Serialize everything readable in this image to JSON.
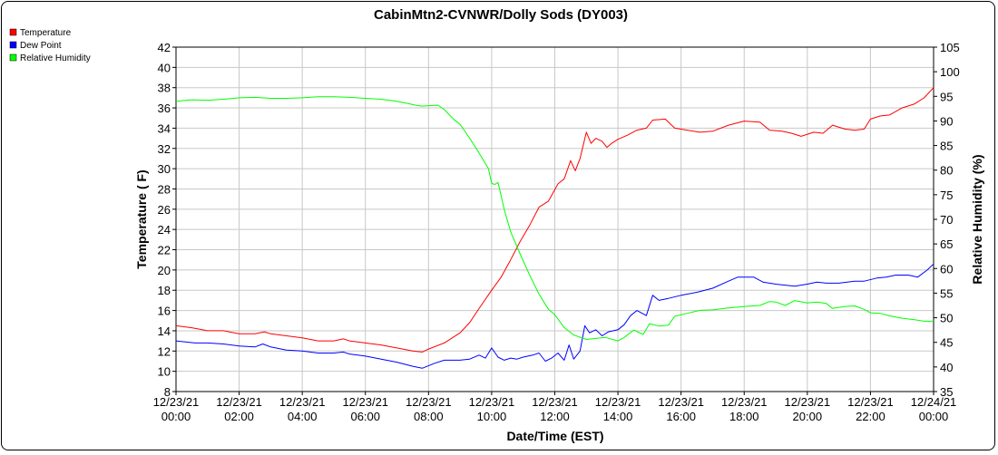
{
  "chart_data": {
    "type": "line",
    "title": "CabinMtn2-CVNWR/Dolly Sods (DY003)",
    "xlabel": "Date/Time (EST)",
    "ylabel_left": "Temperature ( F)",
    "ylabel_right": "Relative Humidity (%)",
    "ylim_left": [
      8,
      42
    ],
    "ylim_right": [
      35,
      105
    ],
    "xlim_hours": [
      0,
      24
    ],
    "grid": true,
    "legend_position": "top-left outside plot",
    "x_tick_labels": [
      {
        "date": "12/23/21",
        "time": "00:00"
      },
      {
        "date": "12/23/21",
        "time": "02:00"
      },
      {
        "date": "12/23/21",
        "time": "04:00"
      },
      {
        "date": "12/23/21",
        "time": "06:00"
      },
      {
        "date": "12/23/21",
        "time": "08:00"
      },
      {
        "date": "12/23/21",
        "time": "10:00"
      },
      {
        "date": "12/23/21",
        "time": "12:00"
      },
      {
        "date": "12/23/21",
        "time": "14:00"
      },
      {
        "date": "12/23/21",
        "time": "16:00"
      },
      {
        "date": "12/23/21",
        "time": "18:00"
      },
      {
        "date": "12/23/21",
        "time": "20:00"
      },
      {
        "date": "12/23/21",
        "time": "22:00"
      },
      {
        "date": "12/24/21",
        "time": "00:00"
      }
    ],
    "y_left_ticks": [
      8,
      10,
      12,
      14,
      16,
      18,
      20,
      22,
      24,
      26,
      28,
      30,
      32,
      34,
      36,
      38,
      40,
      42
    ],
    "y_right_ticks": [
      35,
      40,
      45,
      50,
      55,
      60,
      65,
      70,
      75,
      80,
      85,
      90,
      95,
      100,
      105
    ],
    "series": [
      {
        "name": "Temperature",
        "axis": "left",
        "color": "#ff0000",
        "points": [
          [
            0.0,
            14.5
          ],
          [
            0.5,
            14.3
          ],
          [
            1.0,
            14.0
          ],
          [
            1.5,
            14.0
          ],
          [
            2.0,
            13.7
          ],
          [
            2.5,
            13.7
          ],
          [
            2.8,
            13.9
          ],
          [
            3.0,
            13.7
          ],
          [
            3.5,
            13.5
          ],
          [
            4.0,
            13.3
          ],
          [
            4.5,
            13.0
          ],
          [
            5.0,
            13.0
          ],
          [
            5.3,
            13.2
          ],
          [
            5.5,
            13.0
          ],
          [
            6.0,
            12.8
          ],
          [
            6.5,
            12.6
          ],
          [
            7.0,
            12.3
          ],
          [
            7.5,
            12.0
          ],
          [
            7.8,
            11.9
          ],
          [
            8.0,
            12.2
          ],
          [
            8.5,
            12.8
          ],
          [
            9.0,
            13.8
          ],
          [
            9.3,
            14.8
          ],
          [
            9.6,
            16.2
          ],
          [
            10.0,
            18.0
          ],
          [
            10.3,
            19.3
          ],
          [
            10.6,
            21.0
          ],
          [
            10.9,
            22.8
          ],
          [
            11.2,
            24.4
          ],
          [
            11.5,
            26.2
          ],
          [
            11.8,
            26.8
          ],
          [
            12.1,
            28.5
          ],
          [
            12.3,
            29.0
          ],
          [
            12.5,
            30.8
          ],
          [
            12.65,
            29.8
          ],
          [
            12.8,
            31.0
          ],
          [
            13.0,
            33.6
          ],
          [
            13.15,
            32.5
          ],
          [
            13.3,
            33.0
          ],
          [
            13.5,
            32.7
          ],
          [
            13.65,
            32.1
          ],
          [
            13.8,
            32.5
          ],
          [
            14.0,
            32.9
          ],
          [
            14.3,
            33.3
          ],
          [
            14.6,
            33.8
          ],
          [
            14.9,
            34.0
          ],
          [
            15.1,
            34.8
          ],
          [
            15.5,
            34.9
          ],
          [
            15.8,
            34.0
          ],
          [
            16.2,
            33.8
          ],
          [
            16.6,
            33.6
          ],
          [
            17.0,
            33.7
          ],
          [
            17.5,
            34.3
          ],
          [
            18.0,
            34.7
          ],
          [
            18.5,
            34.6
          ],
          [
            18.8,
            33.8
          ],
          [
            19.2,
            33.7
          ],
          [
            19.5,
            33.5
          ],
          [
            19.8,
            33.2
          ],
          [
            20.2,
            33.6
          ],
          [
            20.5,
            33.5
          ],
          [
            20.8,
            34.3
          ],
          [
            21.2,
            33.9
          ],
          [
            21.5,
            33.8
          ],
          [
            21.8,
            33.9
          ],
          [
            22.0,
            34.9
          ],
          [
            22.3,
            35.2
          ],
          [
            22.6,
            35.3
          ],
          [
            23.0,
            36.0
          ],
          [
            23.4,
            36.4
          ],
          [
            23.7,
            37.0
          ],
          [
            24.0,
            38.0
          ]
        ]
      },
      {
        "name": "Dew Point",
        "axis": "left",
        "color": "#0000ff",
        "points": [
          [
            0.0,
            13.0
          ],
          [
            0.3,
            12.9
          ],
          [
            0.6,
            12.8
          ],
          [
            1.0,
            12.8
          ],
          [
            1.5,
            12.7
          ],
          [
            2.0,
            12.5
          ],
          [
            2.5,
            12.4
          ],
          [
            2.75,
            12.7
          ],
          [
            3.0,
            12.4
          ],
          [
            3.5,
            12.1
          ],
          [
            4.0,
            12.0
          ],
          [
            4.5,
            11.8
          ],
          [
            5.0,
            11.8
          ],
          [
            5.3,
            11.9
          ],
          [
            5.5,
            11.7
          ],
          [
            6.0,
            11.5
          ],
          [
            6.5,
            11.2
          ],
          [
            7.0,
            10.9
          ],
          [
            7.5,
            10.5
          ],
          [
            7.8,
            10.3
          ],
          [
            8.2,
            10.8
          ],
          [
            8.5,
            11.1
          ],
          [
            9.0,
            11.1
          ],
          [
            9.3,
            11.2
          ],
          [
            9.6,
            11.6
          ],
          [
            9.8,
            11.3
          ],
          [
            10.0,
            12.3
          ],
          [
            10.2,
            11.4
          ],
          [
            10.4,
            11.1
          ],
          [
            10.6,
            11.3
          ],
          [
            10.8,
            11.2
          ],
          [
            11.0,
            11.4
          ],
          [
            11.3,
            11.6
          ],
          [
            11.5,
            11.8
          ],
          [
            11.7,
            11.0
          ],
          [
            11.9,
            11.3
          ],
          [
            12.1,
            11.8
          ],
          [
            12.3,
            11.1
          ],
          [
            12.45,
            12.6
          ],
          [
            12.6,
            11.2
          ],
          [
            12.8,
            12.0
          ],
          [
            12.95,
            14.5
          ],
          [
            13.1,
            13.8
          ],
          [
            13.3,
            14.1
          ],
          [
            13.5,
            13.5
          ],
          [
            13.7,
            13.9
          ],
          [
            14.0,
            14.1
          ],
          [
            14.2,
            14.6
          ],
          [
            14.4,
            15.5
          ],
          [
            14.6,
            16.0
          ],
          [
            14.9,
            15.5
          ],
          [
            15.1,
            17.5
          ],
          [
            15.3,
            17.0
          ],
          [
            15.6,
            17.2
          ],
          [
            16.0,
            17.5
          ],
          [
            16.5,
            17.8
          ],
          [
            17.0,
            18.2
          ],
          [
            17.5,
            18.9
          ],
          [
            17.8,
            19.3
          ],
          [
            18.3,
            19.3
          ],
          [
            18.6,
            18.8
          ],
          [
            19.0,
            18.6
          ],
          [
            19.3,
            18.5
          ],
          [
            19.6,
            18.4
          ],
          [
            20.0,
            18.6
          ],
          [
            20.3,
            18.8
          ],
          [
            20.6,
            18.7
          ],
          [
            21.0,
            18.7
          ],
          [
            21.5,
            18.9
          ],
          [
            21.8,
            18.9
          ],
          [
            22.2,
            19.2
          ],
          [
            22.5,
            19.3
          ],
          [
            22.8,
            19.5
          ],
          [
            23.2,
            19.5
          ],
          [
            23.5,
            19.3
          ],
          [
            23.8,
            20.0
          ],
          [
            24.0,
            20.6
          ]
        ]
      },
      {
        "name": "Relative Humidity",
        "axis": "right",
        "color": "#00ff00",
        "points": [
          [
            0.0,
            94.0
          ],
          [
            0.5,
            94.3
          ],
          [
            1.0,
            94.2
          ],
          [
            1.5,
            94.4
          ],
          [
            2.0,
            94.7
          ],
          [
            2.5,
            94.8
          ],
          [
            3.0,
            94.6
          ],
          [
            3.5,
            94.6
          ],
          [
            4.0,
            94.7
          ],
          [
            4.5,
            94.9
          ],
          [
            5.0,
            94.9
          ],
          [
            5.5,
            94.8
          ],
          [
            6.0,
            94.6
          ],
          [
            6.5,
            94.4
          ],
          [
            7.0,
            94.0
          ],
          [
            7.3,
            93.6
          ],
          [
            7.6,
            93.2
          ],
          [
            7.8,
            93.0
          ],
          [
            8.0,
            93.1
          ],
          [
            8.3,
            93.2
          ],
          [
            8.5,
            92.3
          ],
          [
            8.8,
            90.3
          ],
          [
            9.0,
            89.3
          ],
          [
            9.3,
            86.5
          ],
          [
            9.6,
            83.5
          ],
          [
            9.9,
            80.3
          ],
          [
            10.0,
            77.3
          ],
          [
            10.1,
            77.1
          ],
          [
            10.2,
            77.5
          ],
          [
            10.4,
            72.0
          ],
          [
            10.6,
            67.5
          ],
          [
            10.9,
            63.0
          ],
          [
            11.2,
            58.7
          ],
          [
            11.5,
            54.8
          ],
          [
            11.8,
            51.7
          ],
          [
            12.0,
            50.6
          ],
          [
            12.3,
            48.0
          ],
          [
            12.6,
            46.5
          ],
          [
            13.0,
            45.6
          ],
          [
            13.3,
            45.8
          ],
          [
            13.6,
            46.0
          ],
          [
            14.0,
            45.3
          ],
          [
            14.2,
            46.0
          ],
          [
            14.5,
            47.5
          ],
          [
            14.8,
            46.6
          ],
          [
            15.0,
            48.8
          ],
          [
            15.3,
            48.3
          ],
          [
            15.6,
            48.5
          ],
          [
            15.8,
            50.3
          ],
          [
            16.2,
            50.9
          ],
          [
            16.6,
            51.5
          ],
          [
            17.0,
            51.6
          ],
          [
            17.5,
            52.0
          ],
          [
            18.0,
            52.3
          ],
          [
            18.5,
            52.5
          ],
          [
            18.8,
            53.3
          ],
          [
            19.0,
            53.2
          ],
          [
            19.3,
            52.5
          ],
          [
            19.6,
            53.5
          ],
          [
            20.0,
            53.0
          ],
          [
            20.3,
            53.2
          ],
          [
            20.6,
            52.9
          ],
          [
            20.8,
            51.9
          ],
          [
            21.2,
            52.3
          ],
          [
            21.5,
            52.4
          ],
          [
            21.8,
            51.7
          ],
          [
            22.0,
            51.0
          ],
          [
            22.3,
            50.9
          ],
          [
            22.6,
            50.4
          ],
          [
            23.0,
            49.9
          ],
          [
            23.4,
            49.6
          ],
          [
            23.7,
            49.3
          ],
          [
            24.0,
            49.3
          ]
        ]
      }
    ]
  }
}
